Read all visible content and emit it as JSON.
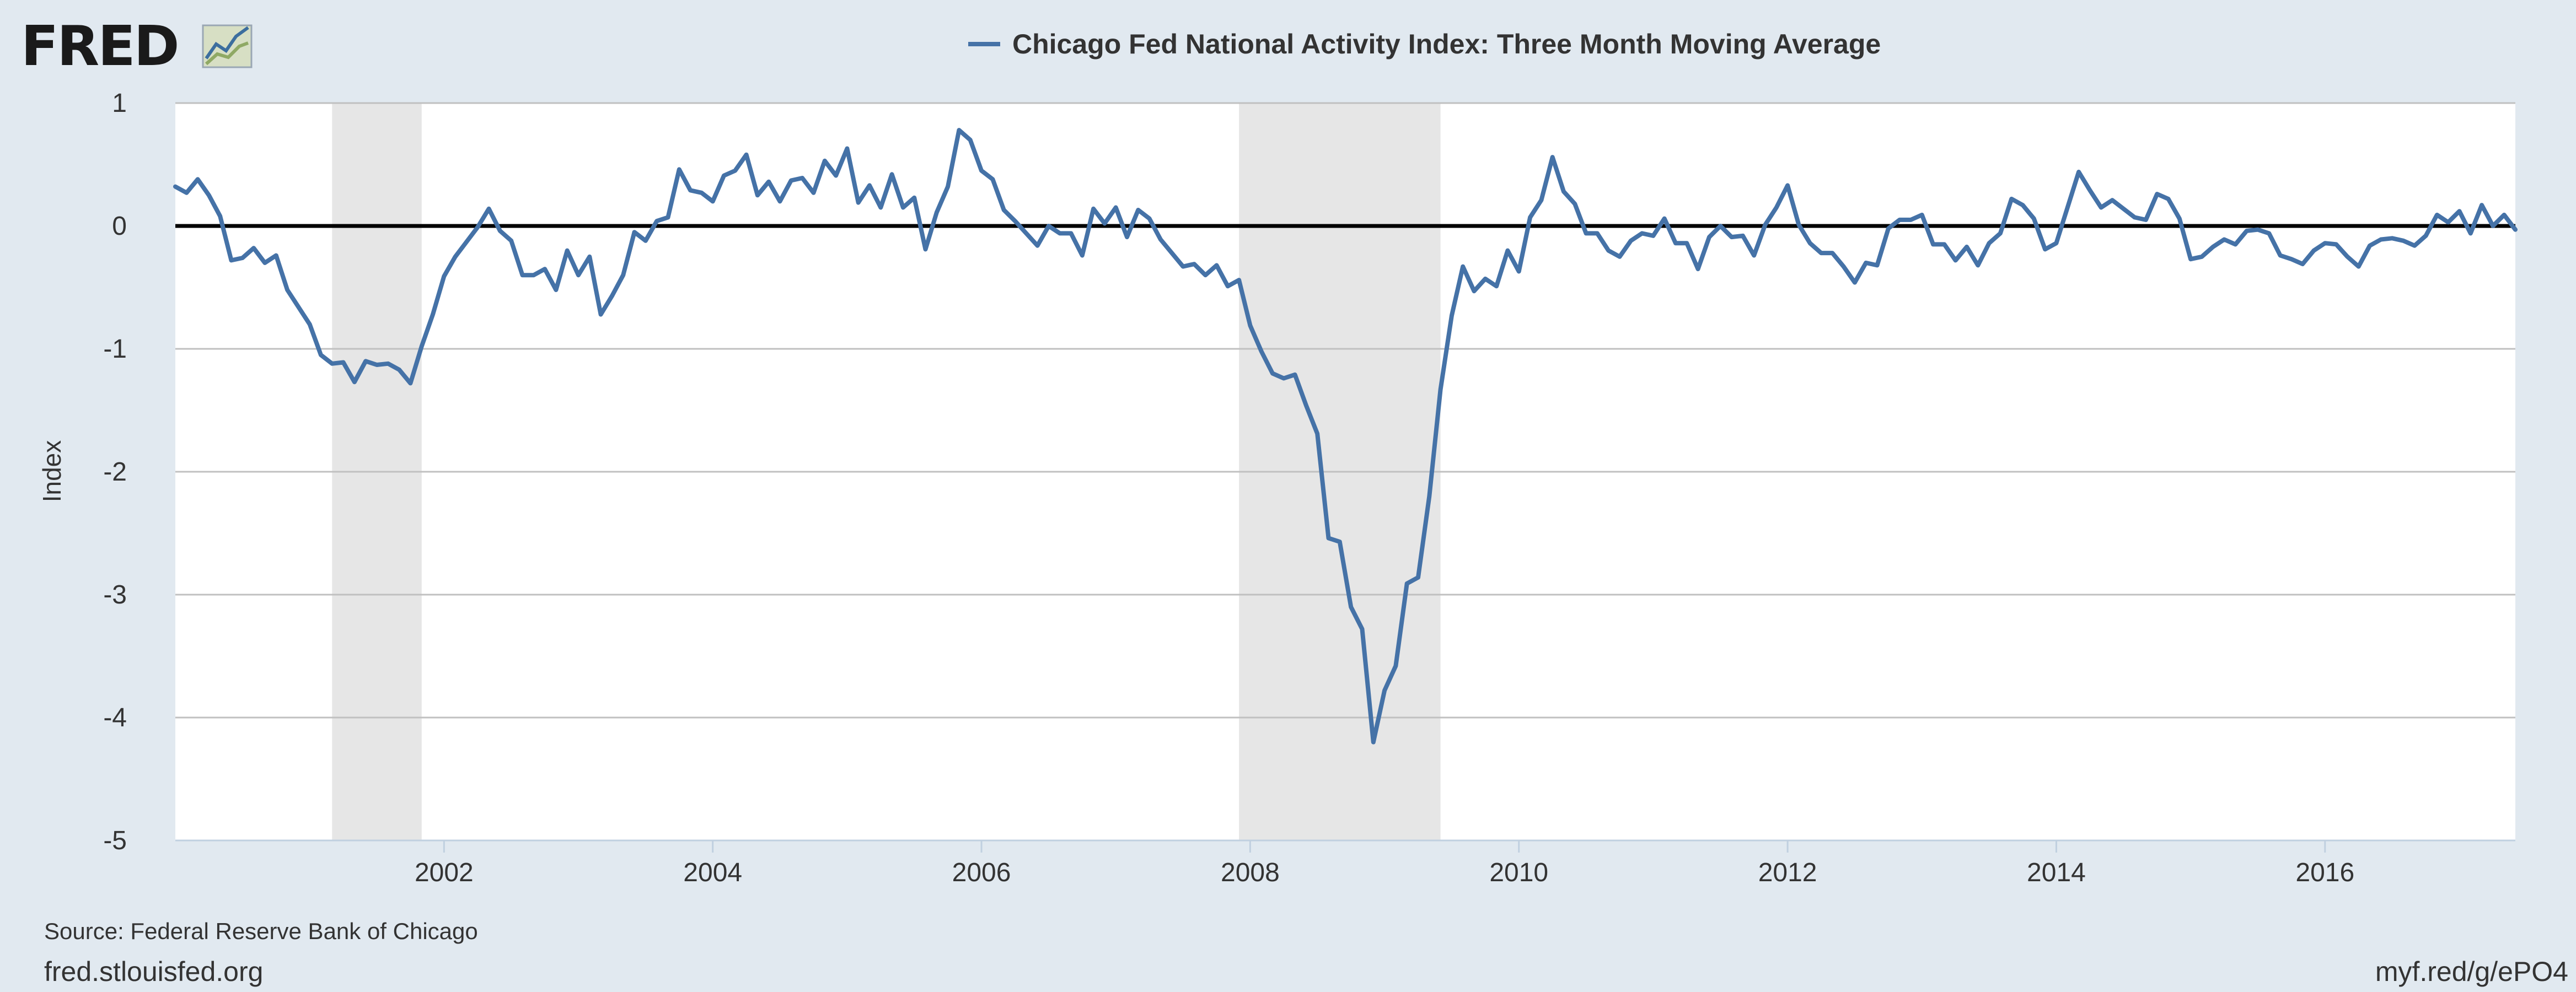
{
  "brand": {
    "logo_text": "FRED"
  },
  "footer": {
    "source": "Source: Federal Reserve Bank of Chicago",
    "site": "fred.stlouisfed.org",
    "short_url": "myf.red/g/ePO4"
  },
  "colors": {
    "background": "#e1e9f0",
    "series": "#4572a7",
    "recession": "#e6e6e6",
    "zero_line": "#000000",
    "grid": "#c0c0c0"
  },
  "chart_data": {
    "type": "line",
    "title": "Chicago Fed National Activity Index: Three Month Moving Average",
    "xlabel": "",
    "ylabel": "Index",
    "xlim": [
      "2000-01",
      "2017-06"
    ],
    "ylim": [
      -5,
      1
    ],
    "yticks": [
      "1",
      "0",
      "-1",
      "-2",
      "-3",
      "-4",
      "-5"
    ],
    "xticks": [
      "2002",
      "2004",
      "2006",
      "2008",
      "2010",
      "2012",
      "2014",
      "2016"
    ],
    "grid": true,
    "legend": "top-center",
    "recessions": [
      {
        "start": "2001-03",
        "end": "2001-11"
      },
      {
        "start": "2007-12",
        "end": "2009-06"
      }
    ],
    "series": [
      {
        "name": "Chicago Fed National Activity Index: Three Month Moving Average",
        "x": [
          "2000-01",
          "2000-02",
          "2000-03",
          "2000-04",
          "2000-05",
          "2000-06",
          "2000-07",
          "2000-08",
          "2000-09",
          "2000-10",
          "2000-11",
          "2000-12",
          "2001-01",
          "2001-02",
          "2001-03",
          "2001-04",
          "2001-05",
          "2001-06",
          "2001-07",
          "2001-08",
          "2001-09",
          "2001-10",
          "2001-11",
          "2001-12",
          "2002-01",
          "2002-02",
          "2002-03",
          "2002-04",
          "2002-05",
          "2002-06",
          "2002-07",
          "2002-08",
          "2002-09",
          "2002-10",
          "2002-11",
          "2002-12",
          "2003-01",
          "2003-02",
          "2003-03",
          "2003-04",
          "2003-05",
          "2003-06",
          "2003-07",
          "2003-08",
          "2003-09",
          "2003-10",
          "2003-11",
          "2003-12",
          "2004-01",
          "2004-02",
          "2004-03",
          "2004-04",
          "2004-05",
          "2004-06",
          "2004-07",
          "2004-08",
          "2004-09",
          "2004-10",
          "2004-11",
          "2004-12",
          "2005-01",
          "2005-02",
          "2005-03",
          "2005-04",
          "2005-05",
          "2005-06",
          "2005-07",
          "2005-08",
          "2005-09",
          "2005-10",
          "2005-11",
          "2005-12",
          "2006-01",
          "2006-02",
          "2006-03",
          "2006-04",
          "2006-05",
          "2006-06",
          "2006-07",
          "2006-08",
          "2006-09",
          "2006-10",
          "2006-11",
          "2006-12",
          "2007-01",
          "2007-02",
          "2007-03",
          "2007-04",
          "2007-05",
          "2007-06",
          "2007-07",
          "2007-08",
          "2007-09",
          "2007-10",
          "2007-11",
          "2007-12",
          "2008-01",
          "2008-02",
          "2008-03",
          "2008-04",
          "2008-05",
          "2008-06",
          "2008-07",
          "2008-08",
          "2008-09",
          "2008-10",
          "2008-11",
          "2008-12",
          "2009-01",
          "2009-02",
          "2009-03",
          "2009-04",
          "2009-05",
          "2009-06",
          "2009-07",
          "2009-08",
          "2009-09",
          "2009-10",
          "2009-11",
          "2009-12",
          "2010-01",
          "2010-02",
          "2010-03",
          "2010-04",
          "2010-05",
          "2010-06",
          "2010-07",
          "2010-08",
          "2010-09",
          "2010-10",
          "2010-11",
          "2010-12",
          "2011-01",
          "2011-02",
          "2011-03",
          "2011-04",
          "2011-05",
          "2011-06",
          "2011-07",
          "2011-08",
          "2011-09",
          "2011-10",
          "2011-11",
          "2011-12",
          "2012-01",
          "2012-02",
          "2012-03",
          "2012-04",
          "2012-05",
          "2012-06",
          "2012-07",
          "2012-08",
          "2012-09",
          "2012-10",
          "2012-11",
          "2012-12",
          "2013-01",
          "2013-02",
          "2013-03",
          "2013-04",
          "2013-05",
          "2013-06",
          "2013-07",
          "2013-08",
          "2013-09",
          "2013-10",
          "2013-11",
          "2013-12",
          "2014-01",
          "2014-02",
          "2014-03",
          "2014-04",
          "2014-05",
          "2014-06",
          "2014-07",
          "2014-08",
          "2014-09",
          "2014-10",
          "2014-11",
          "2014-12",
          "2015-01",
          "2015-02",
          "2015-03",
          "2015-04",
          "2015-05",
          "2015-06",
          "2015-07",
          "2015-08",
          "2015-09",
          "2015-10",
          "2015-11",
          "2015-12",
          "2016-01",
          "2016-02",
          "2016-03",
          "2016-04",
          "2016-05",
          "2016-06",
          "2016-07",
          "2016-08",
          "2016-09",
          "2016-10",
          "2016-11",
          "2016-12",
          "2017-01",
          "2017-02",
          "2017-03",
          "2017-04",
          "2017-05",
          "2017-06"
        ],
        "values": [
          0.32,
          0.27,
          0.38,
          0.25,
          0.08,
          -0.28,
          -0.26,
          -0.18,
          -0.3,
          -0.24,
          -0.52,
          -0.66,
          -0.8,
          -1.05,
          -1.12,
          -1.11,
          -1.27,
          -1.1,
          -1.13,
          -1.12,
          -1.17,
          -1.28,
          -0.98,
          -0.72,
          -0.41,
          -0.25,
          -0.13,
          -0.01,
          0.14,
          -0.04,
          -0.12,
          -0.4,
          -0.4,
          -0.35,
          -0.52,
          -0.2,
          -0.4,
          -0.25,
          -0.72,
          -0.57,
          -0.4,
          -0.05,
          -0.12,
          0.04,
          0.07,
          0.46,
          0.29,
          0.27,
          0.2,
          0.41,
          0.45,
          0.58,
          0.25,
          0.36,
          0.2,
          0.37,
          0.39,
          0.27,
          0.53,
          0.41,
          0.63,
          0.19,
          0.33,
          0.15,
          0.42,
          0.15,
          0.23,
          -0.19,
          0.11,
          0.32,
          0.78,
          0.7,
          0.45,
          0.38,
          0.13,
          0.04,
          -0.06,
          -0.16,
          0.0,
          -0.06,
          -0.06,
          -0.24,
          0.14,
          0.02,
          0.15,
          -0.09,
          0.13,
          0.06,
          -0.11,
          -0.22,
          -0.33,
          -0.31,
          -0.4,
          -0.32,
          -0.49,
          -0.44,
          -0.81,
          -1.02,
          -1.2,
          -1.24,
          -1.21,
          -1.46,
          -1.69,
          -2.54,
          -2.57,
          -3.1,
          -3.28,
          -4.2,
          -3.78,
          -3.58,
          -2.91,
          -2.86,
          -2.2,
          -1.33,
          -0.73,
          -0.33,
          -0.53,
          -0.43,
          -0.49,
          -0.2,
          -0.37,
          0.07,
          0.21,
          0.56,
          0.28,
          0.18,
          -0.06,
          -0.06,
          -0.2,
          -0.25,
          -0.12,
          -0.06,
          -0.08,
          0.06,
          -0.14,
          -0.14,
          -0.35,
          -0.09,
          0.0,
          -0.09,
          -0.08,
          -0.24,
          0.01,
          0.15,
          0.33,
          0.01,
          -0.14,
          -0.22,
          -0.22,
          -0.33,
          -0.46,
          -0.3,
          -0.32,
          -0.02,
          0.05,
          0.05,
          0.09,
          -0.15,
          -0.15,
          -0.28,
          -0.17,
          -0.32,
          -0.14,
          -0.06,
          0.22,
          0.17,
          0.06,
          -0.19,
          -0.14,
          0.15,
          0.44,
          0.29,
          0.15,
          0.21,
          0.14,
          0.07,
          0.05,
          0.26,
          0.22,
          0.06,
          -0.27,
          -0.25,
          -0.17,
          -0.11,
          -0.15,
          -0.04,
          -0.03,
          -0.06,
          -0.24,
          -0.27,
          -0.31,
          -0.2,
          -0.14,
          -0.15,
          -0.25,
          -0.33,
          -0.16,
          -0.11,
          -0.1,
          -0.12,
          -0.16,
          -0.08,
          0.09,
          0.03,
          0.12,
          -0.06,
          0.17,
          0.0,
          0.09,
          -0.03
        ]
      }
    ]
  }
}
